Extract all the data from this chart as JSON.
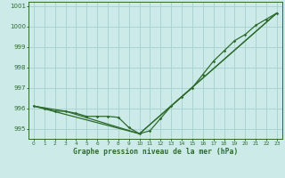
{
  "xlabel": "Graphe pression niveau de la mer (hPa)",
  "bg_color": "#cceae7",
  "grid_color": "#aad4d0",
  "line_color": "#2d6b2d",
  "ylim": [
    994.5,
    1001.2
  ],
  "xlim": [
    -0.5,
    23.5
  ],
  "yticks": [
    995,
    996,
    997,
    998,
    999,
    1000,
    1001
  ],
  "xticks": [
    0,
    1,
    2,
    3,
    4,
    5,
    6,
    7,
    8,
    9,
    10,
    11,
    12,
    13,
    14,
    15,
    16,
    17,
    18,
    19,
    20,
    21,
    22,
    23
  ],
  "series1": {
    "x": [
      0,
      1,
      2,
      3,
      4,
      5,
      6,
      7,
      8,
      9,
      10,
      11,
      12,
      13,
      14,
      15,
      16,
      17,
      18,
      19,
      20,
      21,
      22,
      23
    ],
    "y": [
      996.1,
      996.0,
      995.85,
      995.85,
      995.75,
      995.6,
      995.6,
      995.6,
      995.55,
      995.05,
      994.75,
      994.9,
      995.5,
      996.1,
      996.55,
      997.0,
      997.65,
      998.3,
      998.8,
      999.3,
      999.6,
      1000.05,
      1000.35,
      1000.65
    ]
  },
  "series2": {
    "x": [
      0,
      3,
      10,
      23
    ],
    "y": [
      996.1,
      995.85,
      994.75,
      1000.65
    ]
  }
}
